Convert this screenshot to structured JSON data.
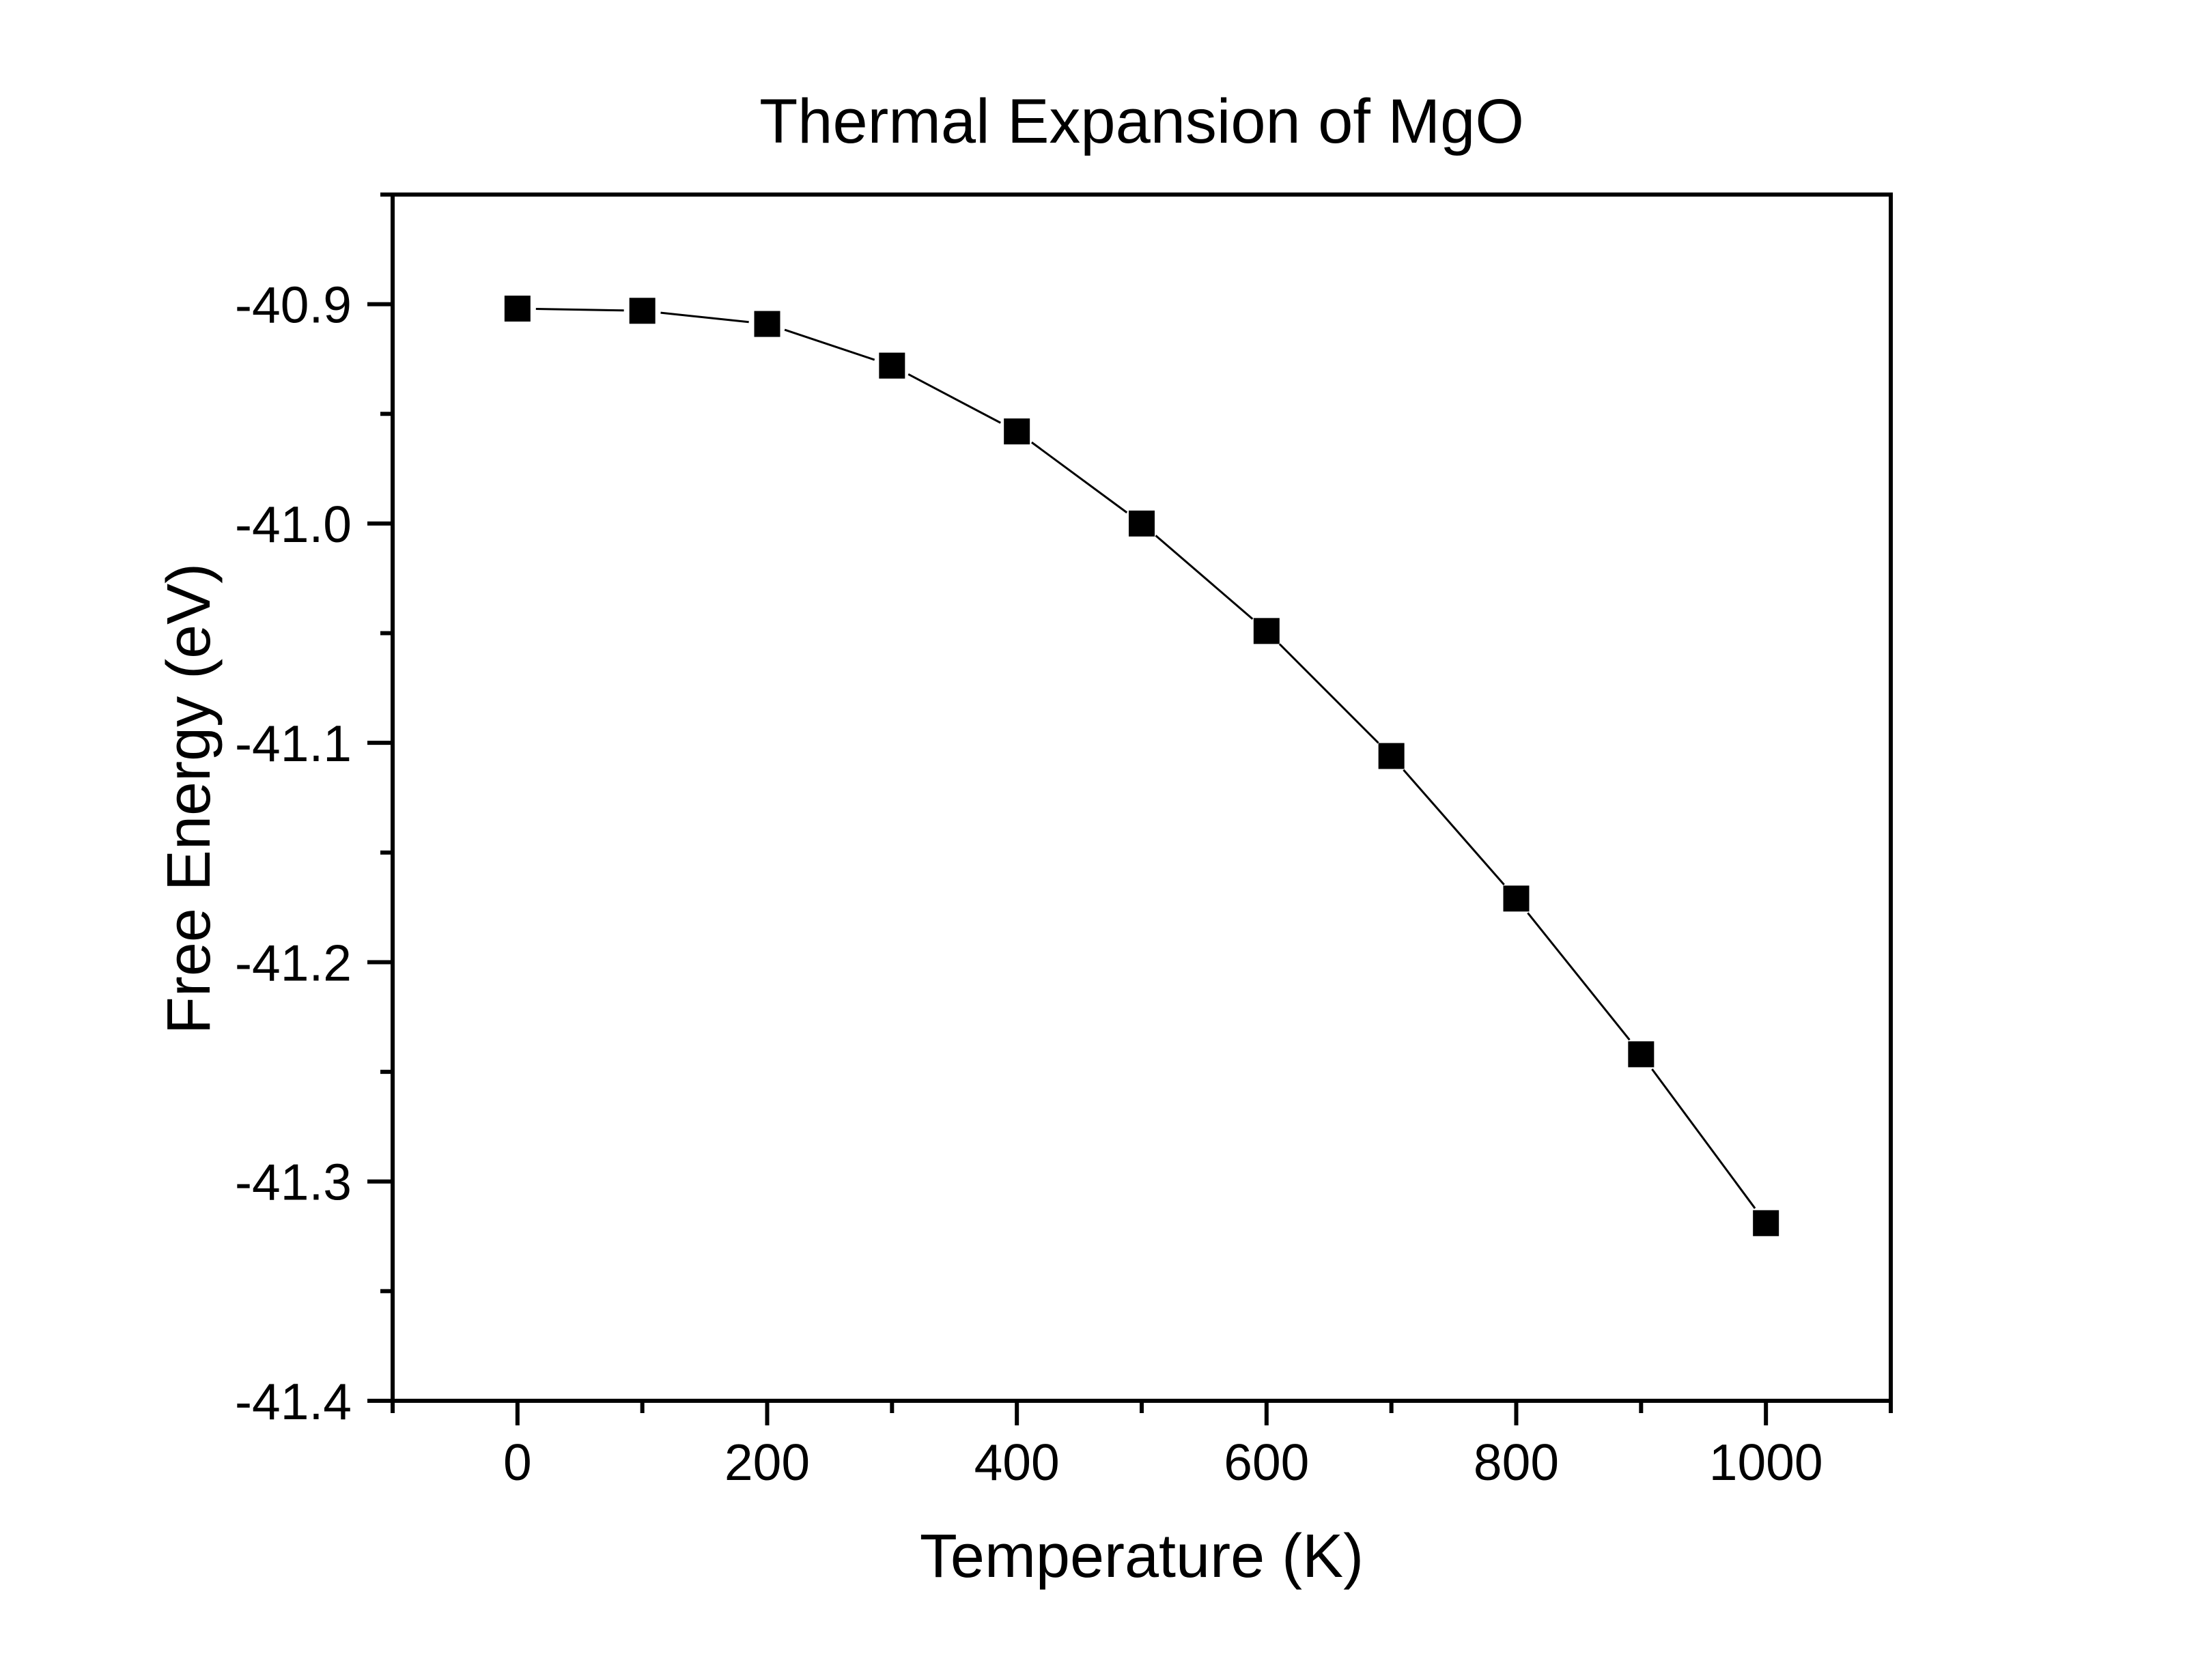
{
  "chart_data": {
    "type": "line",
    "title": "Thermal Expansion of MgO",
    "xlabel": "Temperature (K)",
    "ylabel": "Free Energy (eV)",
    "xlim": [
      -100,
      1100
    ],
    "ylim": [
      -41.4,
      -40.85
    ],
    "x_ticks": [
      0,
      200,
      400,
      600,
      800,
      1000
    ],
    "x_tick_labels": [
      "0",
      "200",
      "400",
      "600",
      "800",
      "1000"
    ],
    "x_minor_ticks": [
      -100,
      100,
      300,
      500,
      700,
      900,
      1100
    ],
    "y_ticks": [
      -40.9,
      -41.0,
      -41.1,
      -41.2,
      -41.3,
      -41.4
    ],
    "y_tick_labels": [
      "-40.9",
      "-41.0",
      "-41.1",
      "-41.2",
      "-41.3",
      "-41.4"
    ],
    "y_minor_ticks": [
      -40.85,
      -40.95,
      -41.05,
      -41.15,
      -41.25,
      -41.35
    ],
    "grid": false,
    "legend": "none",
    "series": [
      {
        "name": "Free Energy",
        "marker": "square",
        "color": "#000000",
        "x": [
          0,
          100,
          200,
          300,
          400,
          500,
          600,
          700,
          800,
          900,
          1000
        ],
        "y": [
          -40.902,
          -40.903,
          -40.909,
          -40.928,
          -40.958,
          -41.0,
          -41.049,
          -41.106,
          -41.171,
          -41.242,
          -41.319
        ]
      }
    ]
  }
}
